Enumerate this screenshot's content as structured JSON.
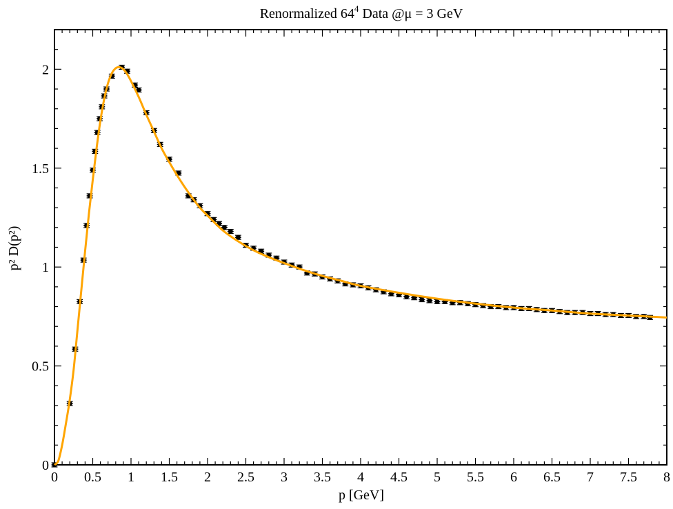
{
  "chart_data": {
    "type": "scatter",
    "title": "Renormalized 64",
    "title_sup": "4",
    "title_suffix": " Data @μ = 3 GeV",
    "xlabel": "p  [GeV]",
    "ylabel": "p² D(p²)",
    "xlim": [
      0,
      8
    ],
    "ylim": [
      0,
      2.2
    ],
    "xticks": [
      "0",
      "0.5",
      "1",
      "1.5",
      "2",
      "2.5",
      "3",
      "3.5",
      "4",
      "4.5",
      "5",
      "5.5",
      "6",
      "6.5",
      "7",
      "7.5",
      "8"
    ],
    "yticks": [
      "0",
      "0.5",
      "1",
      "1.5",
      "2"
    ],
    "grid": false,
    "legend": "none",
    "colors": {
      "data": "#000000",
      "fit": "#ffa500"
    },
    "series": [
      {
        "kind": "points_with_errors",
        "x": [
          0.0,
          0.2,
          0.27,
          0.33,
          0.38,
          0.42,
          0.46,
          0.5,
          0.53,
          0.56,
          0.59,
          0.62,
          0.65,
          0.68,
          0.75,
          0.88,
          0.95,
          1.05,
          1.1,
          1.2,
          1.3,
          1.38,
          1.5,
          1.62,
          1.75,
          1.82,
          1.9,
          2.0,
          2.08,
          2.15,
          2.22,
          2.3,
          2.4,
          2.5,
          2.6,
          2.7,
          2.8,
          2.9,
          3.0,
          3.1,
          3.2,
          3.3,
          3.4,
          3.5,
          3.6,
          3.7,
          3.8,
          3.9,
          4.0,
          4.1,
          4.2,
          4.3,
          4.4,
          4.5,
          4.6,
          4.7,
          4.8,
          4.9,
          5.0,
          5.1,
          5.2,
          5.3,
          5.4,
          5.5,
          5.6,
          5.7,
          5.8,
          5.9,
          6.0,
          6.1,
          6.2,
          6.3,
          6.4,
          6.5,
          6.6,
          6.7,
          6.8,
          6.9,
          7.0,
          7.1,
          7.2,
          7.3,
          7.4,
          7.5,
          7.6,
          7.7,
          7.78
        ],
        "y": [
          0.0,
          0.31,
          0.585,
          0.825,
          1.035,
          1.21,
          1.36,
          1.49,
          1.585,
          1.68,
          1.75,
          1.81,
          1.865,
          1.9,
          1.965,
          2.01,
          1.99,
          1.92,
          1.895,
          1.78,
          1.69,
          1.62,
          1.545,
          1.475,
          1.36,
          1.34,
          1.31,
          1.27,
          1.24,
          1.22,
          1.2,
          1.18,
          1.15,
          1.11,
          1.095,
          1.08,
          1.06,
          1.045,
          1.025,
          1.01,
          1.0,
          0.97,
          0.965,
          0.95,
          0.94,
          0.93,
          0.915,
          0.91,
          0.905,
          0.895,
          0.885,
          0.875,
          0.865,
          0.86,
          0.85,
          0.845,
          0.835,
          0.83,
          0.825,
          0.825,
          0.82,
          0.82,
          0.815,
          0.81,
          0.805,
          0.8,
          0.8,
          0.795,
          0.795,
          0.79,
          0.79,
          0.785,
          0.78,
          0.78,
          0.775,
          0.77,
          0.77,
          0.77,
          0.765,
          0.765,
          0.76,
          0.76,
          0.755,
          0.755,
          0.75,
          0.75,
          0.745
        ],
        "err_x": 0.04,
        "err_y": 0.006
      },
      {
        "kind": "fit_curve",
        "x": [
          0.0,
          0.05,
          0.1,
          0.15,
          0.2,
          0.25,
          0.3,
          0.35,
          0.4,
          0.45,
          0.5,
          0.55,
          0.6,
          0.65,
          0.7,
          0.75,
          0.8,
          0.85,
          0.9,
          0.95,
          1.0,
          1.1,
          1.2,
          1.3,
          1.4,
          1.5,
          1.6,
          1.7,
          1.8,
          1.9,
          2.0,
          2.2,
          2.4,
          2.6,
          2.8,
          3.0,
          3.25,
          3.5,
          3.75,
          4.0,
          4.5,
          5.0,
          5.5,
          6.0,
          6.5,
          7.0,
          7.5,
          8.0
        ],
        "y": [
          0.0,
          0.02,
          0.1,
          0.21,
          0.33,
          0.48,
          0.68,
          0.88,
          1.08,
          1.27,
          1.44,
          1.6,
          1.74,
          1.85,
          1.93,
          1.98,
          2.005,
          2.01,
          2.0,
          1.975,
          1.94,
          1.86,
          1.77,
          1.685,
          1.6,
          1.53,
          1.465,
          1.405,
          1.35,
          1.3,
          1.26,
          1.185,
          1.13,
          1.085,
          1.05,
          1.02,
          0.985,
          0.955,
          0.93,
          0.905,
          0.87,
          0.84,
          0.815,
          0.795,
          0.78,
          0.765,
          0.755,
          0.745
        ]
      }
    ]
  }
}
